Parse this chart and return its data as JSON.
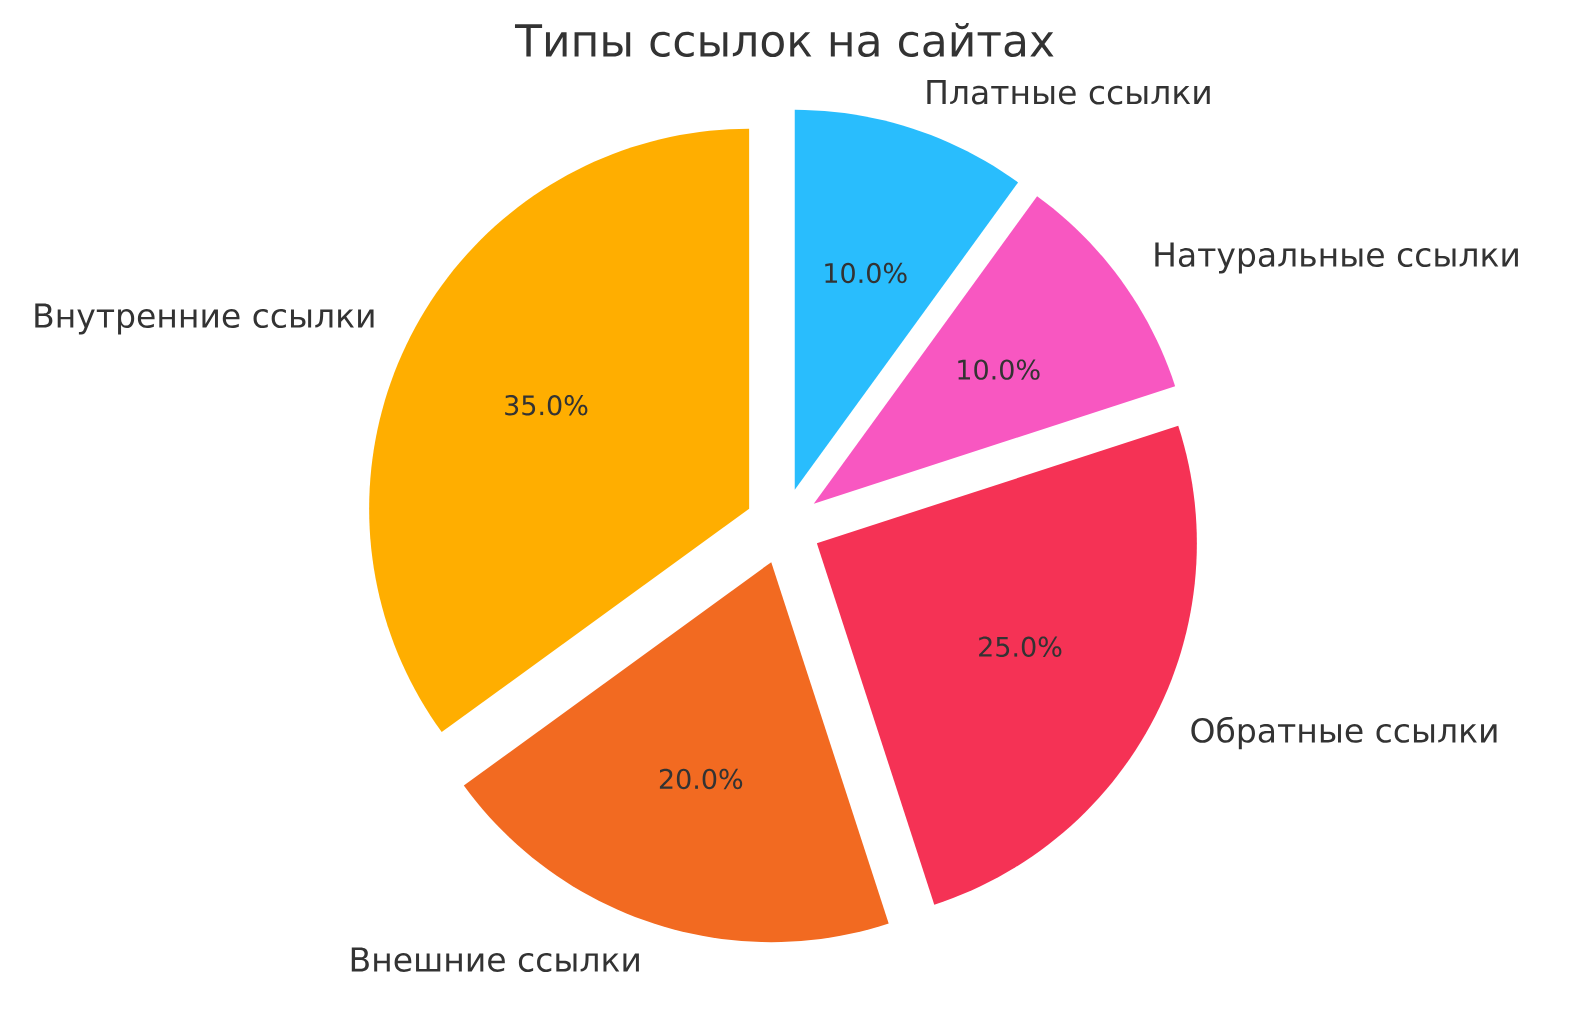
{
  "chart_data": {
    "type": "pie",
    "title": "Типы ссылок на сайтах",
    "categories": [
      "Внутренние ссылки",
      "Внешние ссылки",
      "Обратные ссылки",
      "Натуральные ссылки",
      "Платные ссылки"
    ],
    "values": [
      35.0,
      20.0,
      25.0,
      10.0,
      10.0
    ],
    "colors": [
      "#ffae00",
      "#f26a21",
      "#f53255",
      "#f857c1",
      "#29bdfd"
    ],
    "value_labels": [
      "35.0%",
      "20.0%",
      "25.0%",
      "10.0%",
      "10.0%"
    ]
  }
}
